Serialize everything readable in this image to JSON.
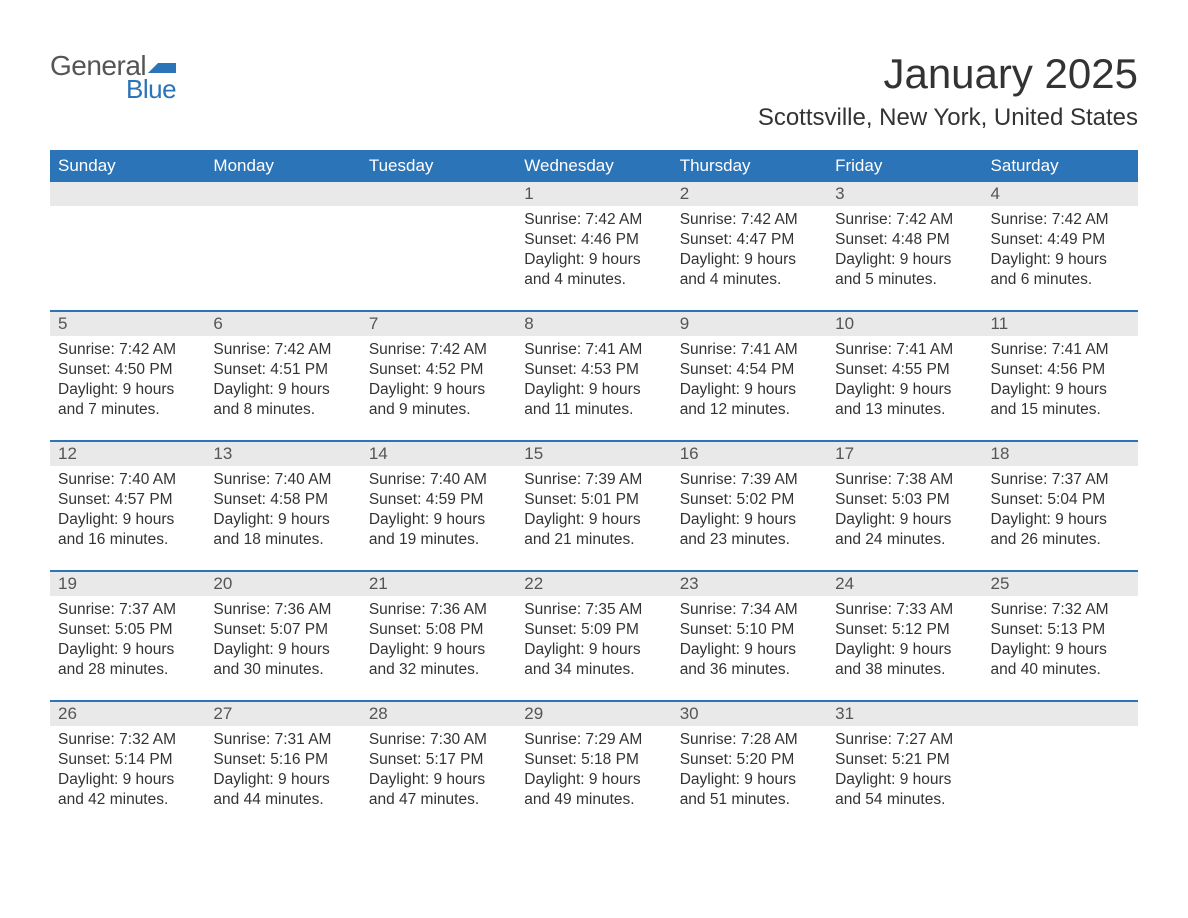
{
  "logo": {
    "text_general": "General",
    "text_blue": "Blue",
    "flag_color": "#2b74b8",
    "general_color": "#555555",
    "blue_color": "#2b74b8"
  },
  "title": "January 2025",
  "subtitle": "Scottsville, New York, United States",
  "colors": {
    "header_bg": "#2b74b8",
    "header_text": "#ffffff",
    "daynum_bg": "#e9e9e9",
    "daynum_text": "#555555",
    "body_text": "#333333",
    "week_border": "#2b74b8",
    "page_bg": "#ffffff"
  },
  "daynames": [
    "Sunday",
    "Monday",
    "Tuesday",
    "Wednesday",
    "Thursday",
    "Friday",
    "Saturday"
  ],
  "weeks": [
    [
      {
        "day": "",
        "sunrise": "",
        "sunset": "",
        "daylight": ""
      },
      {
        "day": "",
        "sunrise": "",
        "sunset": "",
        "daylight": ""
      },
      {
        "day": "",
        "sunrise": "",
        "sunset": "",
        "daylight": ""
      },
      {
        "day": "1",
        "sunrise": "Sunrise: 7:42 AM",
        "sunset": "Sunset: 4:46 PM",
        "daylight": "Daylight: 9 hours and 4 minutes."
      },
      {
        "day": "2",
        "sunrise": "Sunrise: 7:42 AM",
        "sunset": "Sunset: 4:47 PM",
        "daylight": "Daylight: 9 hours and 4 minutes."
      },
      {
        "day": "3",
        "sunrise": "Sunrise: 7:42 AM",
        "sunset": "Sunset: 4:48 PM",
        "daylight": "Daylight: 9 hours and 5 minutes."
      },
      {
        "day": "4",
        "sunrise": "Sunrise: 7:42 AM",
        "sunset": "Sunset: 4:49 PM",
        "daylight": "Daylight: 9 hours and 6 minutes."
      }
    ],
    [
      {
        "day": "5",
        "sunrise": "Sunrise: 7:42 AM",
        "sunset": "Sunset: 4:50 PM",
        "daylight": "Daylight: 9 hours and 7 minutes."
      },
      {
        "day": "6",
        "sunrise": "Sunrise: 7:42 AM",
        "sunset": "Sunset: 4:51 PM",
        "daylight": "Daylight: 9 hours and 8 minutes."
      },
      {
        "day": "7",
        "sunrise": "Sunrise: 7:42 AM",
        "sunset": "Sunset: 4:52 PM",
        "daylight": "Daylight: 9 hours and 9 minutes."
      },
      {
        "day": "8",
        "sunrise": "Sunrise: 7:41 AM",
        "sunset": "Sunset: 4:53 PM",
        "daylight": "Daylight: 9 hours and 11 minutes."
      },
      {
        "day": "9",
        "sunrise": "Sunrise: 7:41 AM",
        "sunset": "Sunset: 4:54 PM",
        "daylight": "Daylight: 9 hours and 12 minutes."
      },
      {
        "day": "10",
        "sunrise": "Sunrise: 7:41 AM",
        "sunset": "Sunset: 4:55 PM",
        "daylight": "Daylight: 9 hours and 13 minutes."
      },
      {
        "day": "11",
        "sunrise": "Sunrise: 7:41 AM",
        "sunset": "Sunset: 4:56 PM",
        "daylight": "Daylight: 9 hours and 15 minutes."
      }
    ],
    [
      {
        "day": "12",
        "sunrise": "Sunrise: 7:40 AM",
        "sunset": "Sunset: 4:57 PM",
        "daylight": "Daylight: 9 hours and 16 minutes."
      },
      {
        "day": "13",
        "sunrise": "Sunrise: 7:40 AM",
        "sunset": "Sunset: 4:58 PM",
        "daylight": "Daylight: 9 hours and 18 minutes."
      },
      {
        "day": "14",
        "sunrise": "Sunrise: 7:40 AM",
        "sunset": "Sunset: 4:59 PM",
        "daylight": "Daylight: 9 hours and 19 minutes."
      },
      {
        "day": "15",
        "sunrise": "Sunrise: 7:39 AM",
        "sunset": "Sunset: 5:01 PM",
        "daylight": "Daylight: 9 hours and 21 minutes."
      },
      {
        "day": "16",
        "sunrise": "Sunrise: 7:39 AM",
        "sunset": "Sunset: 5:02 PM",
        "daylight": "Daylight: 9 hours and 23 minutes."
      },
      {
        "day": "17",
        "sunrise": "Sunrise: 7:38 AM",
        "sunset": "Sunset: 5:03 PM",
        "daylight": "Daylight: 9 hours and 24 minutes."
      },
      {
        "day": "18",
        "sunrise": "Sunrise: 7:37 AM",
        "sunset": "Sunset: 5:04 PM",
        "daylight": "Daylight: 9 hours and 26 minutes."
      }
    ],
    [
      {
        "day": "19",
        "sunrise": "Sunrise: 7:37 AM",
        "sunset": "Sunset: 5:05 PM",
        "daylight": "Daylight: 9 hours and 28 minutes."
      },
      {
        "day": "20",
        "sunrise": "Sunrise: 7:36 AM",
        "sunset": "Sunset: 5:07 PM",
        "daylight": "Daylight: 9 hours and 30 minutes."
      },
      {
        "day": "21",
        "sunrise": "Sunrise: 7:36 AM",
        "sunset": "Sunset: 5:08 PM",
        "daylight": "Daylight: 9 hours and 32 minutes."
      },
      {
        "day": "22",
        "sunrise": "Sunrise: 7:35 AM",
        "sunset": "Sunset: 5:09 PM",
        "daylight": "Daylight: 9 hours and 34 minutes."
      },
      {
        "day": "23",
        "sunrise": "Sunrise: 7:34 AM",
        "sunset": "Sunset: 5:10 PM",
        "daylight": "Daylight: 9 hours and 36 minutes."
      },
      {
        "day": "24",
        "sunrise": "Sunrise: 7:33 AM",
        "sunset": "Sunset: 5:12 PM",
        "daylight": "Daylight: 9 hours and 38 minutes."
      },
      {
        "day": "25",
        "sunrise": "Sunrise: 7:32 AM",
        "sunset": "Sunset: 5:13 PM",
        "daylight": "Daylight: 9 hours and 40 minutes."
      }
    ],
    [
      {
        "day": "26",
        "sunrise": "Sunrise: 7:32 AM",
        "sunset": "Sunset: 5:14 PM",
        "daylight": "Daylight: 9 hours and 42 minutes."
      },
      {
        "day": "27",
        "sunrise": "Sunrise: 7:31 AM",
        "sunset": "Sunset: 5:16 PM",
        "daylight": "Daylight: 9 hours and 44 minutes."
      },
      {
        "day": "28",
        "sunrise": "Sunrise: 7:30 AM",
        "sunset": "Sunset: 5:17 PM",
        "daylight": "Daylight: 9 hours and 47 minutes."
      },
      {
        "day": "29",
        "sunrise": "Sunrise: 7:29 AM",
        "sunset": "Sunset: 5:18 PM",
        "daylight": "Daylight: 9 hours and 49 minutes."
      },
      {
        "day": "30",
        "sunrise": "Sunrise: 7:28 AM",
        "sunset": "Sunset: 5:20 PM",
        "daylight": "Daylight: 9 hours and 51 minutes."
      },
      {
        "day": "31",
        "sunrise": "Sunrise: 7:27 AM",
        "sunset": "Sunset: 5:21 PM",
        "daylight": "Daylight: 9 hours and 54 minutes."
      },
      {
        "day": "",
        "sunrise": "",
        "sunset": "",
        "daylight": ""
      }
    ]
  ]
}
